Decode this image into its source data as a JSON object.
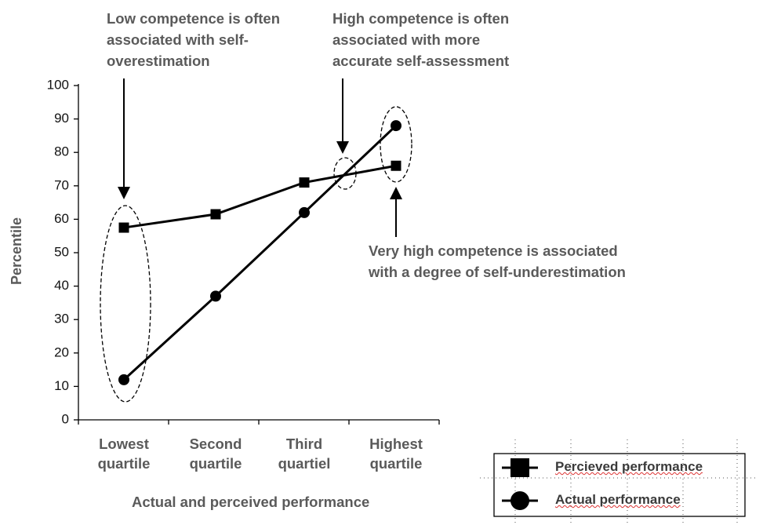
{
  "chart_data": {
    "type": "line",
    "x_label": "Actual and perceived performance",
    "y_label": "Percentile",
    "categories": [
      "Lowest quartile",
      "Second quartile",
      "Third quartiel",
      "Highest quartile"
    ],
    "series": [
      {
        "name": "Percieved performance",
        "color": "#000000",
        "marker": "square",
        "values": [
          57.5,
          61.5,
          71,
          76
        ]
      },
      {
        "name": "Actual performance",
        "color": "#000000",
        "marker": "circle",
        "values": [
          12,
          37,
          62,
          88
        ]
      }
    ],
    "ylim": [
      0,
      100
    ],
    "yticks": [
      0,
      10,
      20,
      30,
      40,
      50,
      60,
      70,
      80,
      90,
      100
    ],
    "annotations": [
      {
        "lines": [
          "Low competence is often",
          "associated with self-",
          "overestimation"
        ]
      },
      {
        "lines": [
          "High competence is often",
          "associated with more",
          "accurate self-assessment"
        ]
      },
      {
        "lines": [
          "Very high competence is associated",
          "with a degree of self-underestimation"
        ]
      }
    ]
  }
}
